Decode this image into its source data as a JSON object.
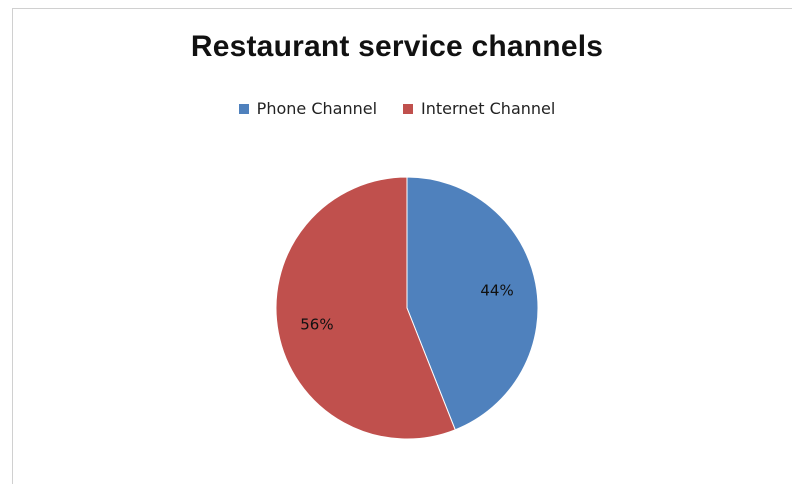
{
  "chart_data": {
    "type": "pie",
    "title": "Restaurant service channels",
    "legend_position": "top",
    "slices": [
      {
        "name": "Phone Channel",
        "value": 44,
        "label": "44%",
        "color": "#4f81bd"
      },
      {
        "name": "Internet Channel",
        "value": 56,
        "label": "56%",
        "color": "#c0504d"
      }
    ]
  }
}
